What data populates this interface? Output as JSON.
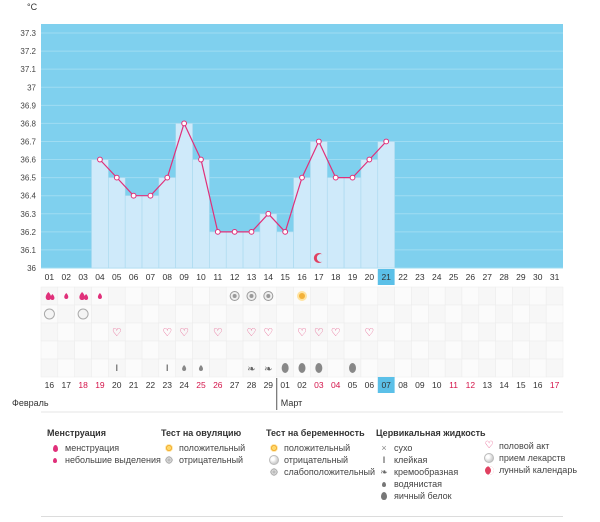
{
  "unit_label": "°C",
  "colors": {
    "plot_bg": "#7fd0ee",
    "bar": "#cfeafa",
    "line": "#e0307a",
    "today": "#5bc0e8"
  },
  "chart_data": {
    "type": "line",
    "title": "",
    "ylabel": "°C",
    "ylim": [
      36,
      37.35
    ],
    "yticks": [
      "36",
      "36.1",
      "36.2",
      "36.3",
      "36.4",
      "36.5",
      "36.6",
      "36.7",
      "36.8",
      "36.9",
      "37",
      "37.1",
      "37.2",
      "37.3"
    ],
    "cycle_days": [
      "01",
      "02",
      "03",
      "04",
      "05",
      "06",
      "07",
      "08",
      "09",
      "10",
      "11",
      "12",
      "13",
      "14",
      "15",
      "16",
      "17",
      "18",
      "19",
      "20",
      "21",
      "22",
      "23",
      "24",
      "25",
      "26",
      "27",
      "28",
      "29",
      "30",
      "31"
    ],
    "current_day_index": 20,
    "series": [
      {
        "values": [
          null,
          null,
          null,
          36.6,
          36.5,
          36.4,
          36.4,
          36.5,
          36.8,
          36.6,
          36.2,
          36.2,
          36.2,
          36.3,
          36.2,
          36.5,
          36.7,
          36.5,
          36.5,
          36.6,
          36.7,
          null,
          null,
          null,
          null,
          null,
          null,
          null,
          null,
          null,
          null
        ]
      }
    ],
    "dates": [
      "16",
      "17",
      "18",
      "19",
      "20",
      "21",
      "22",
      "23",
      "24",
      "25",
      "26",
      "27",
      "28",
      "29",
      "01",
      "02",
      "03",
      "04",
      "05",
      "06",
      "07",
      "08",
      "09",
      "10",
      "11",
      "12",
      "13",
      "14",
      "15",
      "16",
      "17"
    ],
    "date_colors": [
      "n",
      "n",
      "r",
      "r",
      "n",
      "n",
      "n",
      "n",
      "n",
      "r",
      "r",
      "n",
      "n",
      "n",
      "n",
      "n",
      "r",
      "r",
      "n",
      "n",
      "t",
      "n",
      "n",
      "n",
      "r",
      "r",
      "n",
      "n",
      "n",
      "n",
      "r"
    ],
    "months": [
      "Февраль",
      "Март"
    ],
    "markers": {
      "menstruation": {
        "days": [
          1,
          3
        ],
        "icon": "drop-icon"
      },
      "light_spotting": {
        "days": [
          2,
          4
        ],
        "icon": "small-drop-icon"
      },
      "ovulation_negative": {
        "days": [
          12,
          13,
          14
        ],
        "icon": "grey-circle-icon"
      },
      "ovulation_positive": {
        "days": [
          16
        ],
        "icon": "sun-icon"
      },
      "pregnancy_negative": {
        "days": [
          1,
          3
        ],
        "icon": "white-circle-icon"
      },
      "intercourse": {
        "days": [
          5,
          8,
          9,
          11,
          13,
          14,
          16,
          17,
          18,
          20
        ],
        "icon": "heart-icon"
      },
      "lunar_calendar": {
        "days": [
          17
        ],
        "icon": "moon-icon"
      },
      "cervical_sticky": {
        "days": [
          5,
          8
        ],
        "icon": "sticky-icon"
      },
      "cervical_watery": {
        "days": [
          9,
          10
        ],
        "icon": "watery-icon"
      },
      "cervical_creamy": {
        "days": [
          13,
          14
        ],
        "icon": "creamy-icon"
      },
      "cervical_eggwhite": {
        "days": [
          15,
          16,
          17,
          19
        ],
        "icon": "egg-white-icon"
      }
    }
  },
  "legend": {
    "menstruation": {
      "title": "Менструация",
      "items": [
        "менструация",
        "небольшие выделения"
      ]
    },
    "ovulation": {
      "title": "Тест на овуляцию",
      "items": [
        "положительный",
        "отрицательный"
      ]
    },
    "pregnancy": {
      "title": "Тест на беременность",
      "items": [
        "положительный",
        "отрицательный",
        "слабоположительный"
      ]
    },
    "cervical": {
      "title": "Цервикальная жидкость",
      "items": [
        "сухо",
        "клейкая",
        "кремообразная",
        "водянистая",
        "яичный белок"
      ]
    },
    "other": {
      "items": [
        "половой акт",
        "прием лекарств",
        "лунный календарь"
      ]
    }
  }
}
